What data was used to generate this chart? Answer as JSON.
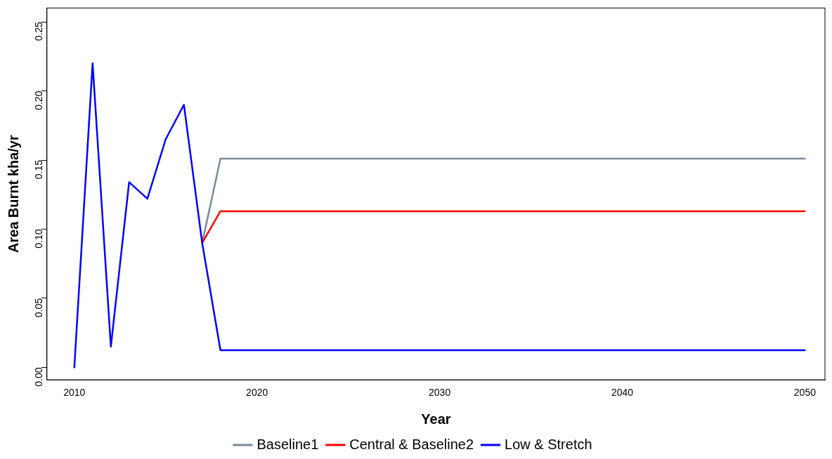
{
  "chart_data": {
    "type": "line",
    "xlabel": "Year",
    "ylabel": "Area Burnt kha/yr",
    "xlim": [
      2008.5,
      2051.1
    ],
    "xticks": [
      2010,
      2020,
      2030,
      2040,
      2050
    ],
    "ylim": [
      -0.009,
      0.26
    ],
    "yticks": [
      {
        "value": 0,
        "label": "0.00"
      },
      0.05,
      {
        "value": 0.1,
        "label": "0.10"
      },
      0.15,
      {
        "value": 0.2,
        "label": "0.20"
      },
      0.25
    ],
    "grid": false,
    "legend": "bottom",
    "marker": "none",
    "line_style": "solid",
    "series": [
      {
        "name": "Baseline1",
        "color": "#778899",
        "x": [
          2017,
          2018,
          2050
        ],
        "values": [
          0.09,
          0.151,
          0.151
        ]
      },
      {
        "name": "Central & Baseline2",
        "color": "#ff0000",
        "x": [
          2017,
          2018,
          2050
        ],
        "values": [
          0.09,
          0.113,
          0.113
        ]
      },
      {
        "name": "Low & Stretch",
        "color": "#0000ff",
        "x": [
          2010,
          2011,
          2012,
          2013,
          2014,
          2015,
          2016,
          2017,
          2018,
          2050
        ],
        "values": [
          0,
          0.22,
          0.015,
          0.134,
          0.122,
          0.165,
          0.19,
          0.09,
          0.0124,
          0.0124
        ]
      }
    ]
  }
}
